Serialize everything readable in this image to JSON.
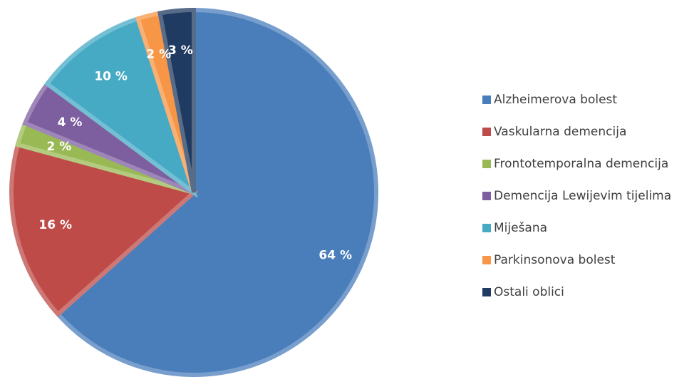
{
  "chart_data": {
    "type": "pie",
    "categories": [
      "Alzheimerova bolest",
      "Vaskularna demencija",
      "Frontotemporalna demencija",
      "Demencija Lewijevim tijelima",
      "Miješana",
      "Parkinsonova bolest",
      "Ostali oblici"
    ],
    "values": [
      64,
      16,
      2,
      4,
      10,
      2,
      3
    ],
    "value_labels": [
      "64 %",
      "16 %",
      "2 %",
      "4 %",
      "10 %",
      "2 %",
      "3 %"
    ],
    "colors": [
      "#4a7ebb",
      "#be4b48",
      "#98b954",
      "#7d5fa0",
      "#46aac5",
      "#f79646",
      "#1f3b62"
    ],
    "legend": "right"
  }
}
